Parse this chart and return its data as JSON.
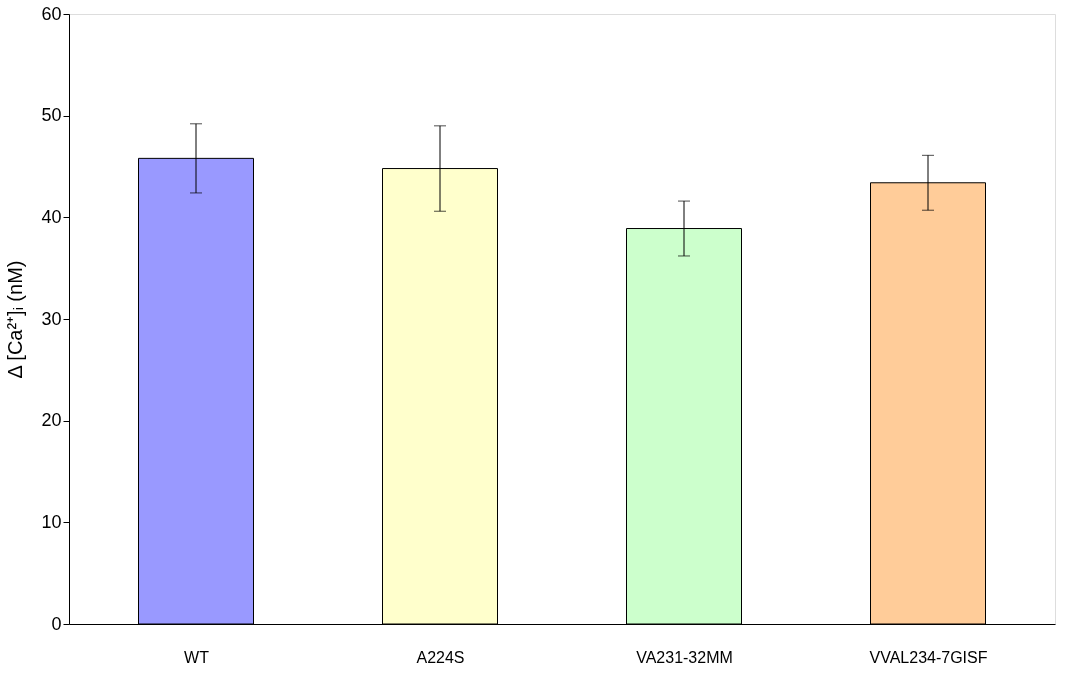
{
  "chart_data": {
    "type": "bar",
    "ylabel": "Δ [Ca²⁺]ᵢ (nM)",
    "categories": [
      "WT",
      "A224S",
      "VA231-32MM",
      "VVAL234-7GISF"
    ],
    "values": [
      45.8,
      44.8,
      38.9,
      43.4
    ],
    "colors": [
      "#9999ff",
      "#ffffcc",
      "#ccffcc",
      "#ffcc99"
    ],
    "errors": [
      3.4,
      4.2,
      2.7,
      2.7
    ],
    "ylim": [
      0,
      60
    ],
    "yticks": [
      0,
      10,
      20,
      30,
      40,
      50,
      60
    ],
    "grid": false
  }
}
